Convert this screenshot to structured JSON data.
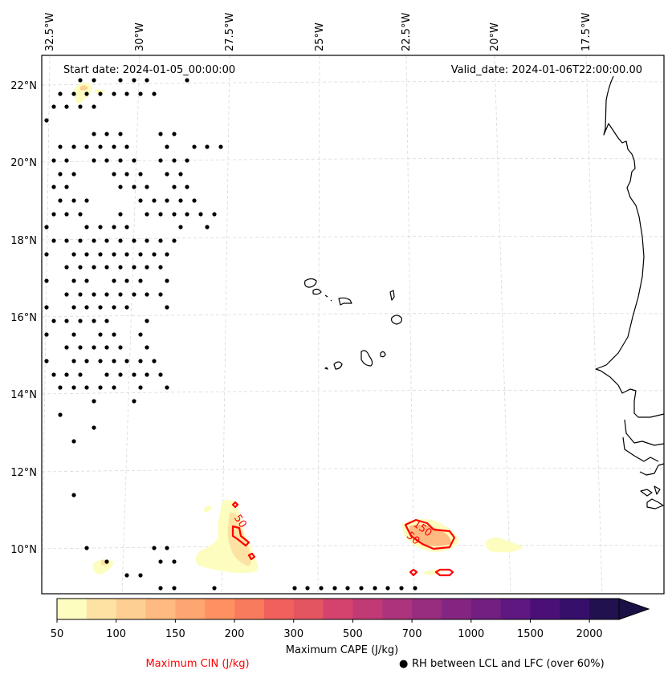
{
  "figure": {
    "start_date": "Start date: 2024-01-05_00:00:00",
    "valid_date": "Valid_date: 2024-01-06T22:00:00.00"
  },
  "map": {
    "lon_ticks": [
      "32.5°W",
      "30°W",
      "27.5°W",
      "25°W",
      "22.5°W",
      "20°W",
      "17.5°W"
    ],
    "lat_ticks": [
      "22°N",
      "20°N",
      "18°N",
      "16°N",
      "14°N",
      "12°N",
      "10°N"
    ],
    "cin_contour_labels": [
      "50",
      "150",
      "50"
    ],
    "features": {
      "coastline": "West Africa (Mauritania / Senegal / Guinea-Bissau)",
      "islands": "Cape Verde"
    }
  },
  "colorbar": {
    "label": "Maximum CAPE (J/kg)",
    "tick_labels": [
      "50",
      "100",
      "150",
      "200",
      "300",
      "500",
      "700",
      "1000",
      "1500",
      "2000"
    ],
    "levels": [
      50,
      75,
      100,
      125,
      150,
      175,
      200,
      250,
      300,
      400,
      500,
      600,
      700,
      850,
      1000,
      1250,
      1500,
      1750,
      2000,
      2250
    ],
    "colors": [
      "#fcfdbf",
      "#fde2a3",
      "#fecf92",
      "#feba80",
      "#fea671",
      "#fd9162",
      "#f97b5d",
      "#f1605d",
      "#e35560",
      "#d3436e",
      "#c03a76",
      "#ad347c",
      "#982d80",
      "#842681",
      "#721f81",
      "#5f187f",
      "#4a1078",
      "#360f6b",
      "#21114e",
      "#1b1045"
    ],
    "extend": "max"
  },
  "legend": {
    "cin_label": "Maximum CIN (J/kg)",
    "rh_marker": "●",
    "rh_label": "RH between LCL and LFC (over 60%)",
    "cin_color": "#ff0000"
  }
}
